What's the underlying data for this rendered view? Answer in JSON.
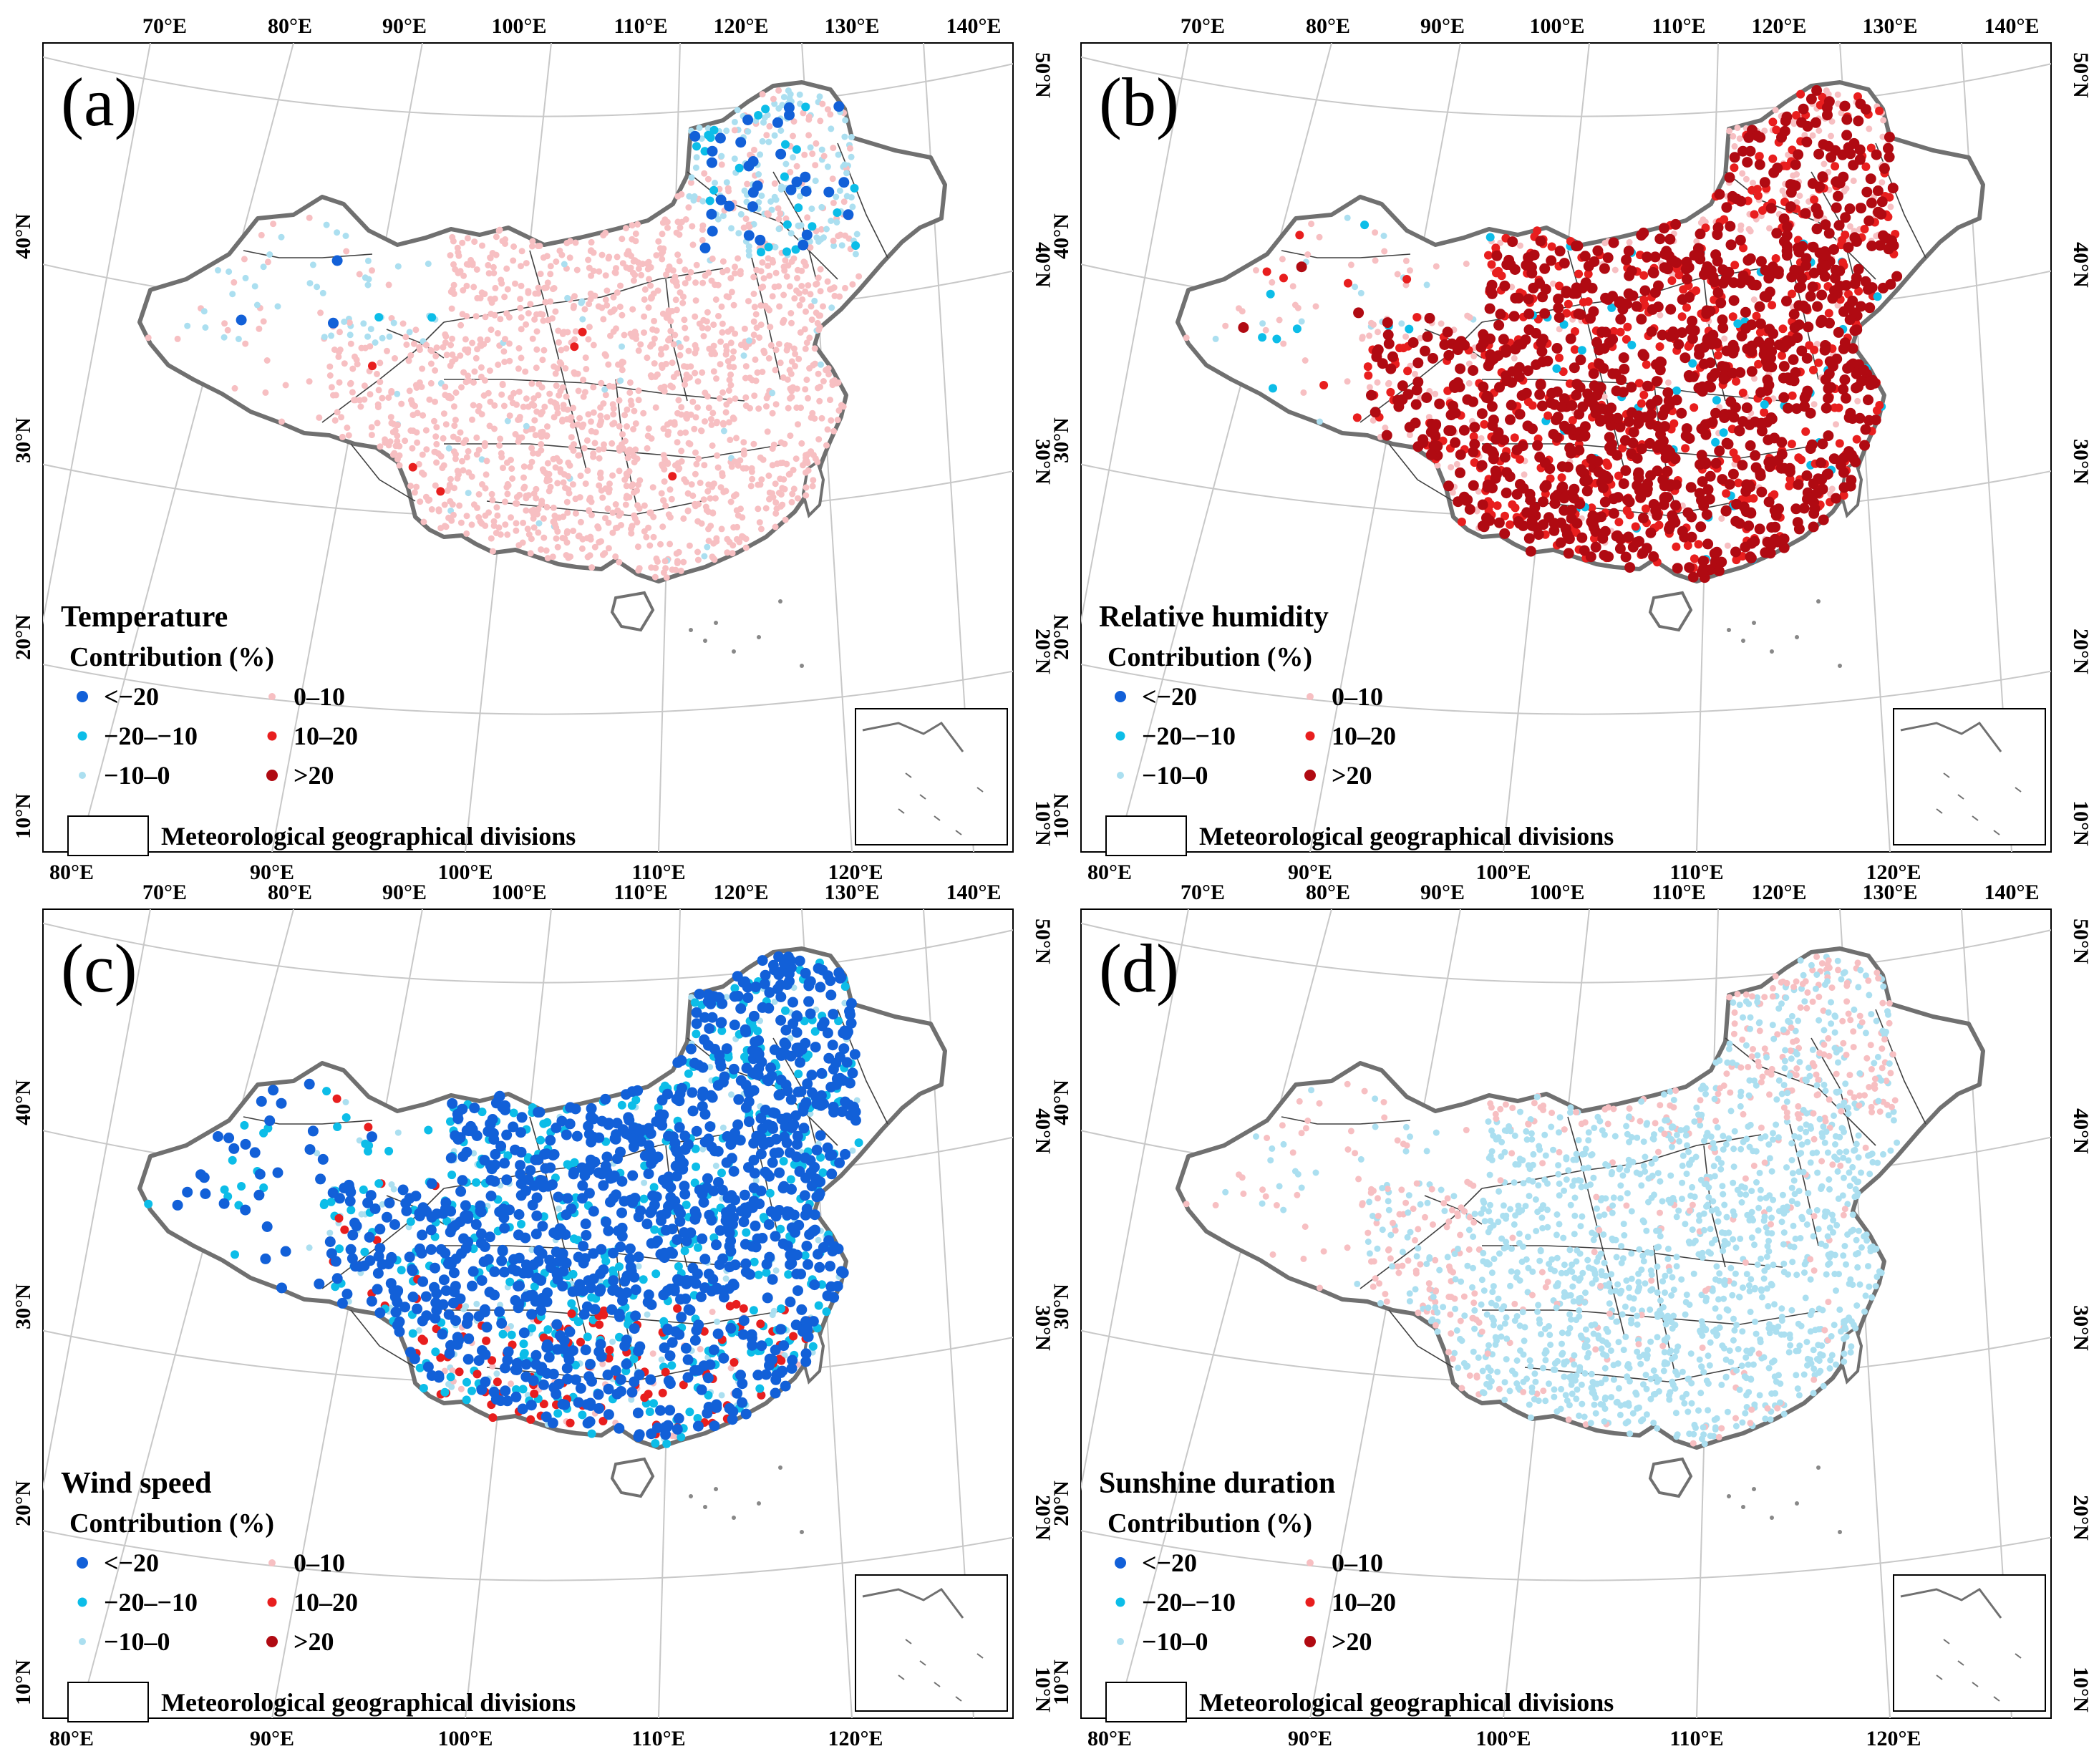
{
  "figure": {
    "legend": {
      "contribution_title": "Contribution (%)",
      "classes": [
        {
          "label": "<−20",
          "color": "#1260d8"
        },
        {
          "label": "−20–−10",
          "color": "#0cbde8"
        },
        {
          "label": "−10–0",
          "color": "#abdff0"
        },
        {
          "label": "0–10",
          "color": "#f7bfc2"
        },
        {
          "label": "10–20",
          "color": "#e81e1e"
        },
        {
          "label": ">20",
          "color": "#b00a12"
        }
      ],
      "divisions_label": "Meteorological geographical divisions"
    },
    "axes": {
      "bottom_lon_ticks": [
        "80°E",
        "90°E",
        "100°E",
        "110°E",
        "120°E"
      ],
      "top_lon_ticks": [
        "70°E",
        "80°E",
        "90°E",
        "100°E",
        "110°E",
        "120°E",
        "130°E",
        "140°E"
      ],
      "left_lat_ticks": [
        "40°N",
        "30°N",
        "20°N",
        "10°N"
      ],
      "right_lat_ticks": [
        "50°N",
        "40°N",
        "30°N",
        "20°N",
        "10°N"
      ]
    },
    "panels": [
      {
        "letter": "(a)",
        "variable": "Temperature",
        "dominant_class": "0–10",
        "secondary_class": "−10–0",
        "accent_classes": [
          "<−20",
          "−20–−10"
        ]
      },
      {
        "letter": "(b)",
        "variable": "Relative humidity",
        "dominant_class": ">20",
        "secondary_class": "10–20",
        "accent_classes": [
          "0–10",
          "−10–0"
        ]
      },
      {
        "letter": "(c)",
        "variable": "Wind speed",
        "dominant_class": "<−20",
        "secondary_class": "−20–−10",
        "accent_classes": [
          "10–20",
          "−10–0"
        ]
      },
      {
        "letter": "(d)",
        "variable": "Sunshine duration",
        "dominant_class": "−10–0",
        "secondary_class": "0–10",
        "accent_classes": []
      }
    ]
  }
}
